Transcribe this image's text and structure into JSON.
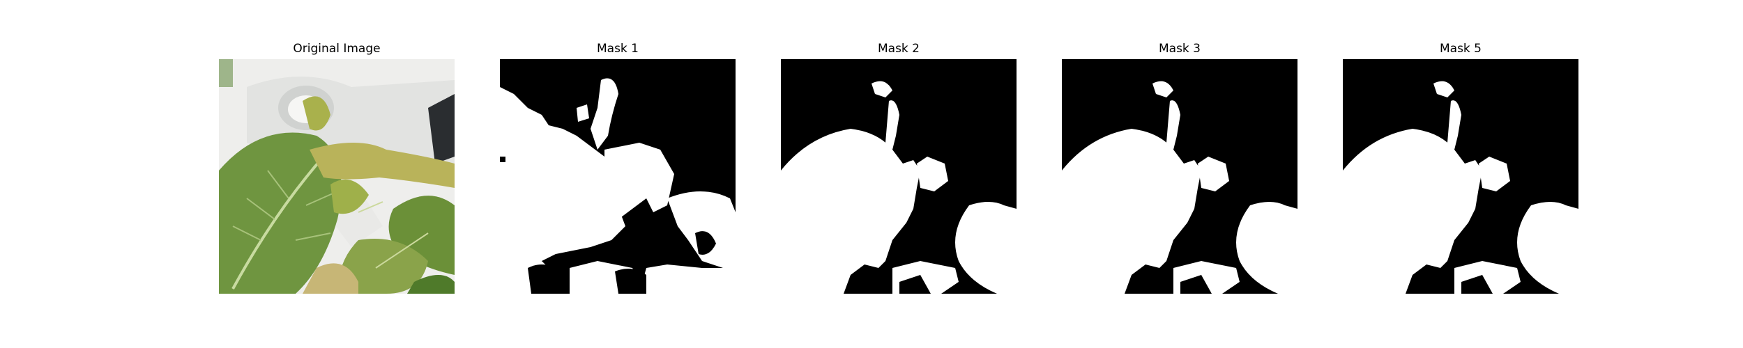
{
  "panels": [
    {
      "title": "Original Image",
      "kind": "photo",
      "image_description": "green leafy plant with white object"
    },
    {
      "title": "Mask 1",
      "kind": "mask"
    },
    {
      "title": "Mask 2",
      "kind": "mask"
    },
    {
      "title": "Mask 3",
      "kind": "mask"
    },
    {
      "title": "Mask 5",
      "kind": "mask"
    }
  ],
  "colors": {
    "mask_background": "#000000",
    "mask_foreground": "#ffffff",
    "leaf_green": "#6f9540",
    "leaf_dark": "#4f7a2a",
    "leaf_yellow": "#b9b35a",
    "pot_white": "#e8e8e6"
  }
}
